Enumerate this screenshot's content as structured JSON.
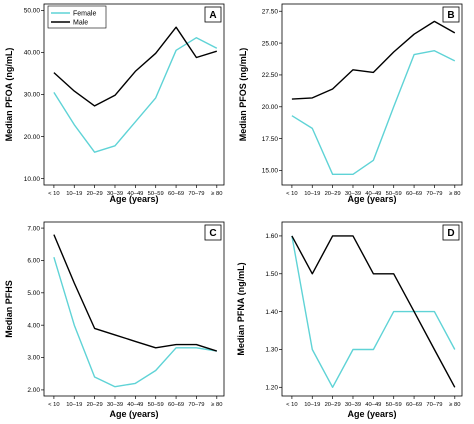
{
  "colors": {
    "female": "#5fd3d6",
    "male": "#000000"
  },
  "chart_data": [
    {
      "type": "line",
      "panel": "A",
      "ylabel": "Median PFOA (ng/mL)",
      "xlabel": "Age (years)",
      "categories": [
        "< 10",
        "10–19",
        "20–29",
        "30–39",
        "40–49",
        "50–59",
        "60–69",
        "70–79",
        "≥ 80"
      ],
      "ylim": [
        10,
        50
      ],
      "yticks": [
        "10.00",
        "20.00",
        "30.00",
        "40.00",
        "50.00"
      ],
      "legend": [
        "Female",
        "Male"
      ],
      "series": [
        {
          "name": "Female",
          "color": "female",
          "values": [
            30.5,
            22.8,
            16.3,
            17.8,
            23.5,
            29.2,
            40.5,
            43.5,
            41.0
          ]
        },
        {
          "name": "Male",
          "color": "male",
          "values": [
            35.2,
            30.8,
            27.3,
            29.8,
            35.5,
            39.8,
            46.0,
            38.8,
            40.3
          ]
        }
      ]
    },
    {
      "type": "line",
      "panel": "B",
      "ylabel": "Median PFOS (ng/mL)",
      "xlabel": "Age (years)",
      "categories": [
        "< 10",
        "10–19",
        "20–29",
        "30–39",
        "40–49",
        "50–59",
        "60–69",
        "70–79",
        "≥ 80"
      ],
      "ylim": [
        14.5,
        27.5
      ],
      "yticks": [
        "15.00",
        "17.50",
        "20.00",
        "22.50",
        "25.00",
        "27.50"
      ],
      "series": [
        {
          "name": "Female",
          "color": "female",
          "values": [
            19.3,
            18.3,
            14.7,
            14.7,
            15.8,
            20.0,
            24.1,
            24.4,
            23.6
          ]
        },
        {
          "name": "Male",
          "color": "male",
          "values": [
            20.6,
            20.7,
            21.4,
            22.9,
            22.7,
            24.3,
            25.7,
            26.7,
            25.8
          ]
        }
      ]
    },
    {
      "type": "line",
      "panel": "C",
      "ylabel": "Median PFHS",
      "xlabel": "Age (years)",
      "categories": [
        "< 10",
        "10–19",
        "20–29",
        "30–39",
        "40–49",
        "50–59",
        "60–69",
        "70–79",
        "≥ 80"
      ],
      "ylim": [
        2,
        7
      ],
      "yticks": [
        "2.00",
        "3.00",
        "4.00",
        "5.00",
        "6.00",
        "7.00"
      ],
      "series": [
        {
          "name": "Female",
          "color": "female",
          "values": [
            6.1,
            4.0,
            2.4,
            2.1,
            2.2,
            2.6,
            3.3,
            3.3,
            3.2
          ]
        },
        {
          "name": "Male",
          "color": "male",
          "values": [
            6.8,
            5.3,
            3.9,
            3.7,
            3.5,
            3.3,
            3.4,
            3.4,
            3.2
          ]
        }
      ]
    },
    {
      "type": "line",
      "panel": "D",
      "ylabel": "Median PFNA (ng/mL)",
      "xlabel": "Age (years)",
      "categories": [
        "< 10",
        "10–19",
        "20–29",
        "30–39",
        "40–49",
        "50–59",
        "60–69",
        "70–79",
        "≥ 80"
      ],
      "ylim": [
        1.2,
        1.6
      ],
      "yticks": [
        "1.20",
        "1.30",
        "1.40",
        "1.50",
        "1.60"
      ],
      "series": [
        {
          "name": "Female",
          "color": "female",
          "values": [
            1.6,
            1.3,
            1.2,
            1.3,
            1.3,
            1.4,
            1.4,
            1.4,
            1.3
          ]
        },
        {
          "name": "Male",
          "color": "male",
          "values": [
            1.6,
            1.5,
            1.6,
            1.6,
            1.5,
            1.5,
            1.4,
            1.3,
            1.2
          ]
        }
      ]
    }
  ]
}
